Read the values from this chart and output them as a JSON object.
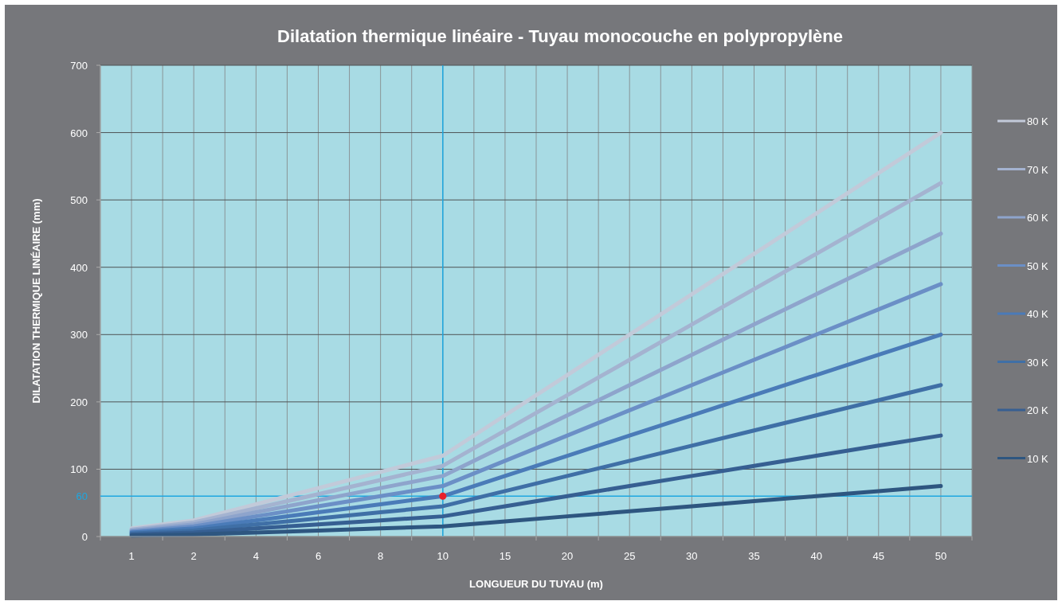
{
  "chart_data": {
    "type": "line",
    "title": "Dilatation thermique linéaire - Tuyau monocouche en polypropylène",
    "xlabel": "LONGUEUR DU TUYAU (m)",
    "ylabel": "DILATATION THERMIQUE LINÉAIRE (mm)",
    "categories": [
      "1",
      "2",
      "4",
      "6",
      "8",
      "10",
      "15",
      "20",
      "25",
      "30",
      "35",
      "40",
      "45",
      "50"
    ],
    "ylim": [
      0,
      700
    ],
    "yticks": [
      0,
      100,
      200,
      300,
      400,
      500,
      600,
      700
    ],
    "grid": true,
    "legend": "right",
    "marker": "none",
    "line_style": "solid",
    "series": [
      {
        "name": "80 K",
        "color": "#c2cad9",
        "values": [
          12,
          24,
          48,
          72,
          96,
          120,
          180,
          240,
          300,
          360,
          420,
          480,
          540,
          600
        ]
      },
      {
        "name": "70 K",
        "color": "#a4b3d0",
        "values": [
          10.5,
          21,
          42,
          63,
          84,
          105,
          157.5,
          210,
          262.5,
          315,
          367.5,
          420,
          472.5,
          525
        ]
      },
      {
        "name": "60 K",
        "color": "#8ea4cc",
        "values": [
          9,
          18,
          36,
          54,
          72,
          90,
          135,
          180,
          225,
          270,
          315,
          360,
          405,
          450
        ]
      },
      {
        "name": "50 K",
        "color": "#6b8fc6",
        "values": [
          7.5,
          15,
          30,
          45,
          60,
          75,
          112.5,
          150,
          187.5,
          225,
          262.5,
          300,
          337.5,
          375
        ]
      },
      {
        "name": "40 K",
        "color": "#4a7bb8",
        "values": [
          6,
          12,
          24,
          36,
          48,
          60,
          90,
          120,
          150,
          180,
          210,
          240,
          270,
          300
        ]
      },
      {
        "name": "30 K",
        "color": "#3f6fa6",
        "values": [
          4.5,
          9,
          18,
          27,
          36,
          45,
          67.5,
          90,
          112.5,
          135,
          157.5,
          180,
          202.5,
          225
        ]
      },
      {
        "name": "20 K",
        "color": "#365f92",
        "values": [
          3,
          6,
          12,
          18,
          24,
          30,
          45,
          60,
          75,
          90,
          105,
          120,
          135,
          150
        ]
      },
      {
        "name": "10 K",
        "color": "#2e5680",
        "values": [
          1.5,
          3,
          6,
          9,
          12,
          15,
          22.5,
          30,
          37.5,
          45,
          52.5,
          60,
          67.5,
          75
        ]
      },
      {
        "type": "scatter",
        "color": "#e8202a",
        "marker": "circle",
        "x": [
          "10"
        ],
        "values": [
          60
        ]
      }
    ],
    "ref_lines": [
      {
        "axis": "y",
        "value": 60,
        "label": "60",
        "color": "#1ea7e0"
      },
      {
        "axis": "x",
        "value": "10",
        "color": "#1ea7e0"
      }
    ]
  }
}
